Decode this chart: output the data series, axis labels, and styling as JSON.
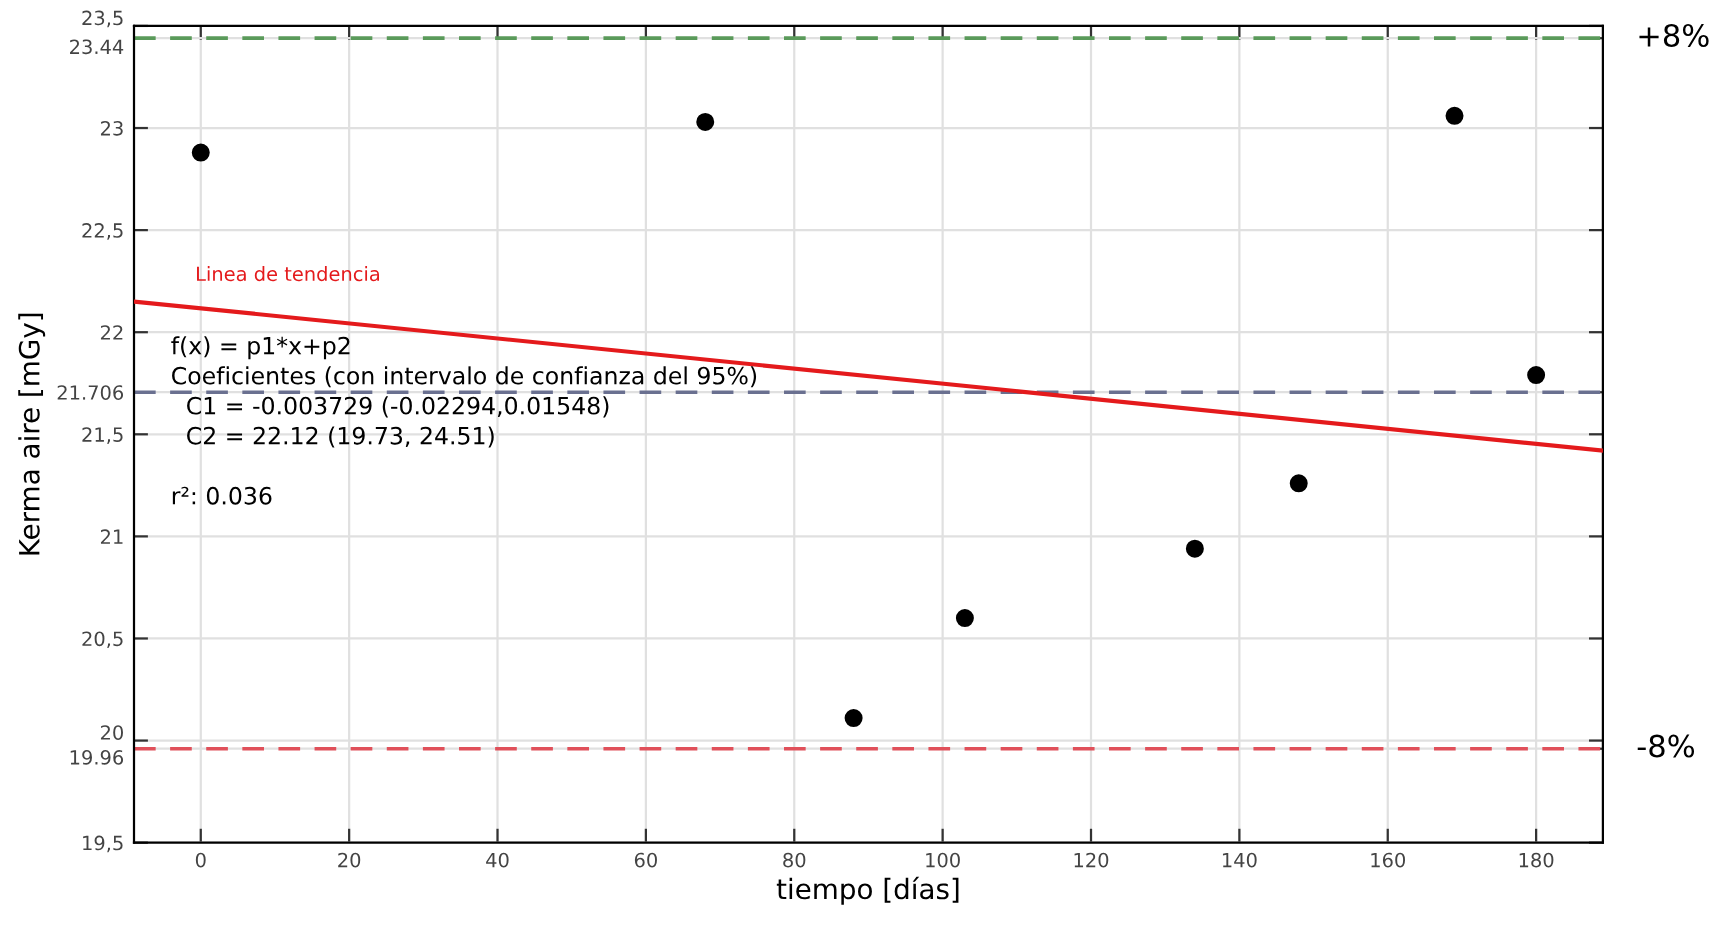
{
  "chart_data": {
    "type": "scatter",
    "xlabel": "tiempo [días]",
    "ylabel": "Kerma aire [mGy]",
    "series": [
      {
        "color": "#000000",
        "marker": "circle",
        "x": [
          0,
          68,
          88,
          103,
          134,
          148,
          169,
          180
        ],
        "values": [
          22.88,
          23.03,
          20.11,
          20.6,
          20.94,
          21.26,
          23.06,
          21.79
        ]
      },
      {
        "type": "line",
        "name": "Linea de tendencia",
        "color": "#e41a1c",
        "marker": "none",
        "x": [
          -9,
          189
        ],
        "values": [
          22.15,
          21.42
        ]
      }
    ],
    "ref_lines": [
      {
        "axis": "y",
        "value": 23.44,
        "color": "#5a9a5a",
        "line_style": "dashed"
      },
      {
        "axis": "y",
        "value": 21.706,
        "color": "#6a7090",
        "line_style": "dashed"
      },
      {
        "axis": "y",
        "value": 19.96,
        "color": "#e0505a",
        "line_style": "dashed"
      }
    ],
    "annotations": [
      "+8%",
      "-8%",
      "f(x) = p1*x+p2\nCoeficientes (con intervalo de confianza del 95%)\n  C1 = -0.003729 (-0.02294,0.01548)\n  C2 = 22.12 (19.73, 24.51)\n\nr²: 0.036"
    ],
    "xlim": [
      -9,
      189
    ],
    "xticks": [
      0,
      20,
      40,
      60,
      80,
      100,
      120,
      140,
      160,
      180
    ],
    "ylim": [
      19.5,
      23.5
    ],
    "yticks": [
      {
        "value": 19.5,
        "label": "19,5"
      },
      {
        "value": 19.96,
        "label": "19.96"
      },
      {
        "value": 20,
        "label": "20"
      },
      {
        "value": 20.5,
        "label": "20,5"
      },
      {
        "value": 21,
        "label": "21"
      },
      {
        "value": 21.5,
        "label": "21,5"
      },
      {
        "value": 21.706,
        "label": "21.706"
      },
      {
        "value": 22,
        "label": "22"
      },
      {
        "value": 22.5,
        "label": "22,5"
      },
      {
        "value": 23,
        "label": "23"
      },
      {
        "value": 23.44,
        "label": "23.44"
      },
      {
        "value": 23.5,
        "label": "23,5"
      }
    ],
    "grid": true
  }
}
